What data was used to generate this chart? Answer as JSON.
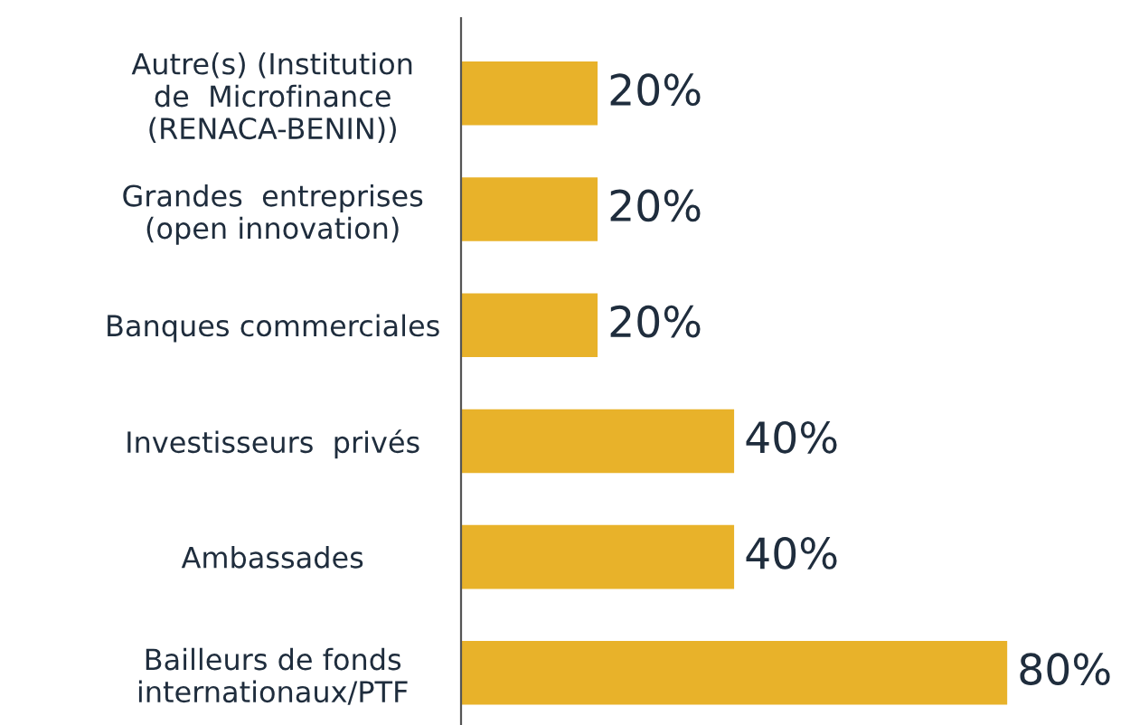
{
  "chart_data": {
    "type": "bar",
    "orientation": "horizontal",
    "categories": [
      "Autre(s) (Institution\nde  Microfinance\n(RENACA-BENIN))",
      "Grandes  entreprises\n(open innovation)",
      "Banques commerciales",
      "Investisseurs  privés",
      "Ambassades",
      "Bailleurs de fonds\ninternationaux/PTF"
    ],
    "values": [
      20,
      20,
      20,
      40,
      40,
      80
    ],
    "value_labels": [
      "20%",
      "20%",
      "20%",
      "40%",
      "40%",
      "80%"
    ],
    "color": "#e8b22a",
    "grid": false,
    "legend": false
  }
}
